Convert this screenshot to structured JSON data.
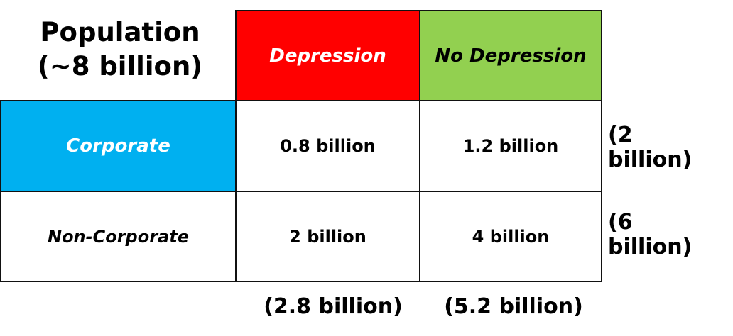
{
  "title": {
    "line1": "Population",
    "line2": "(~8 billion)"
  },
  "columns": [
    {
      "label": "Depression",
      "color": "#ff0000",
      "text_color": "#ffffff"
    },
    {
      "label": "No Depression",
      "color": "#92d050",
      "text_color": "#000000"
    }
  ],
  "rows": [
    {
      "label": "Corporate",
      "color": "#00b0f0",
      "text_color": "#ffffff",
      "values": [
        "0.8 billion",
        "1.2 billion"
      ],
      "total": "(2 billion)"
    },
    {
      "label": "Non-Corporate",
      "color": "#ffffff",
      "text_color": "#000000",
      "values": [
        "2 billion",
        "4 billion"
      ],
      "total": "(6 billion)"
    }
  ],
  "column_totals": [
    "(2.8 billion)",
    "(5.2 billion)"
  ]
}
